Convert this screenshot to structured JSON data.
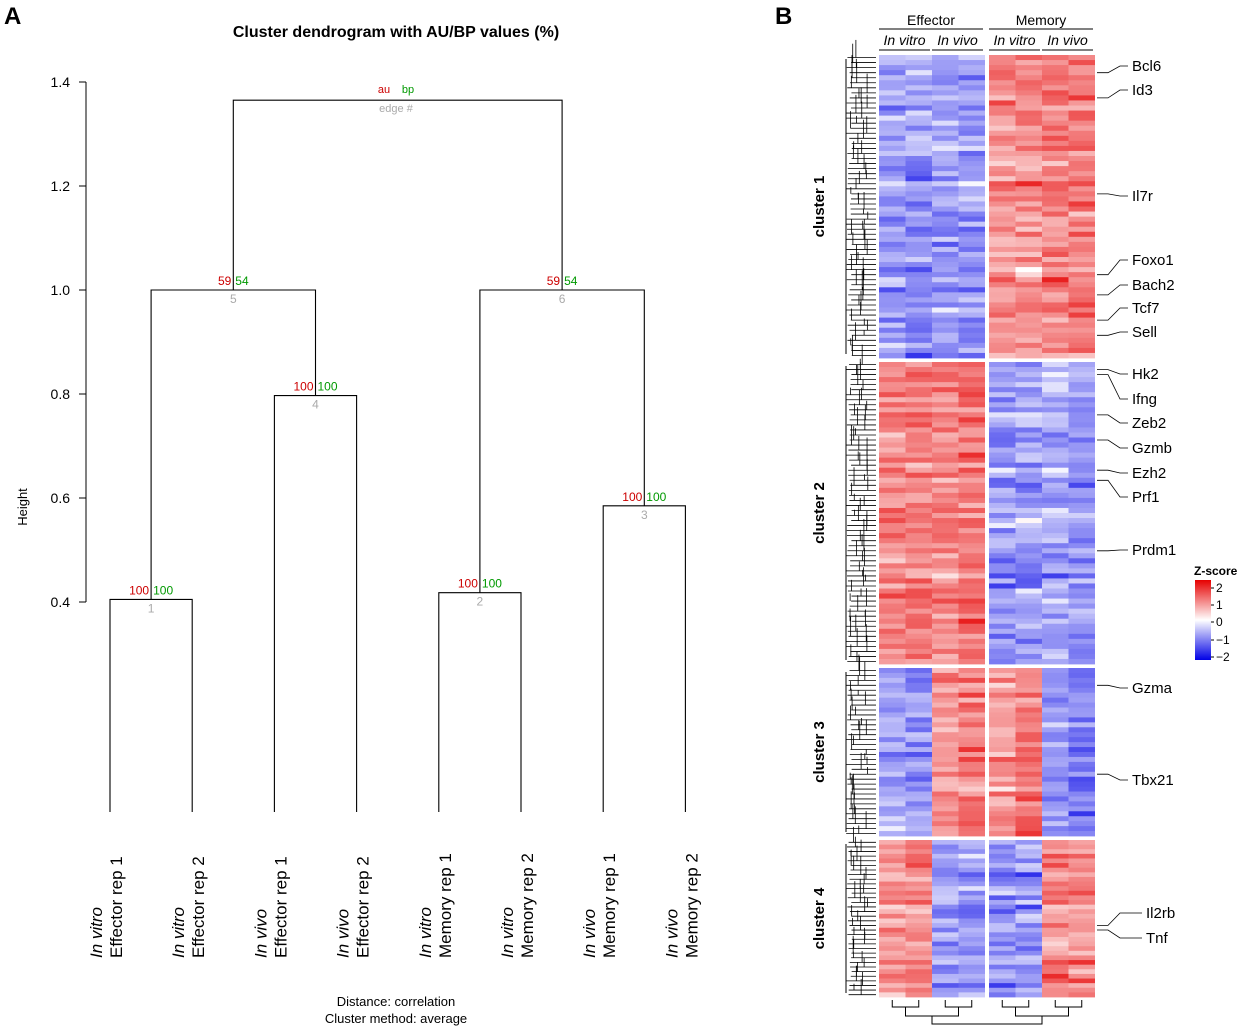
{
  "panel_a": {
    "letter": "A",
    "title": "Cluster dendrogram with AU/BP values (%)",
    "footer_line1": "Distance:  correlation",
    "footer_line2": "Cluster method:  average",
    "legend": {
      "au": "au",
      "bp": "bp",
      "edge": "edge #"
    }
  },
  "panel_b": {
    "letter": "B",
    "groups": [
      "Effector",
      "Memory"
    ],
    "conditions": [
      "In vitro",
      "In vivo",
      "In vitro",
      "In vivo"
    ],
    "clusters": [
      "cluster 1",
      "cluster 2",
      "cluster 3",
      "cluster 4"
    ],
    "colorbar_title": "Z-score",
    "colorbar_ticks": [
      "2",
      "1",
      "0",
      "−1",
      "−2"
    ],
    "colors": {
      "high": "#e60000",
      "mid": "#ffffff",
      "low": "#0000e6"
    }
  },
  "chart_data": [
    {
      "type": "dendrogram",
      "title": "Cluster dendrogram with AU/BP values (%)",
      "ylabel": "Height",
      "ylim": [
        0.4,
        1.4
      ],
      "yticks": [
        "0.4",
        "0.6",
        "0.8",
        "1.0",
        "1.2",
        "1.4"
      ],
      "ytick_values": [
        0.4,
        0.6,
        0.8,
        1.0,
        1.2,
        1.4
      ],
      "leaves": [
        {
          "condition": "In vitro",
          "sample": "Effector rep 1"
        },
        {
          "condition": "In vitro",
          "sample": "Effector rep 2"
        },
        {
          "condition": "In vivo",
          "sample": "Effector rep 1"
        },
        {
          "condition": "In vivo",
          "sample": "Effector rep 2"
        },
        {
          "condition": "In vitro",
          "sample": "Memory rep 1"
        },
        {
          "condition": "In vitro",
          "sample": "Memory rep 2"
        },
        {
          "condition": "In vivo",
          "sample": "Memory rep 1"
        },
        {
          "condition": "In vivo",
          "sample": "Memory rep 2"
        }
      ],
      "merges": [
        {
          "edge": "1",
          "left": "L0",
          "right": "L1",
          "height": 0.405,
          "au": "100",
          "bp": "100"
        },
        {
          "edge": "2",
          "left": "L4",
          "right": "L5",
          "height": 0.418,
          "au": "100",
          "bp": "100"
        },
        {
          "edge": "3",
          "left": "L6",
          "right": "L7",
          "height": 0.585,
          "au": "100",
          "bp": "100"
        },
        {
          "edge": "4",
          "left": "L2",
          "right": "L3",
          "height": 0.797,
          "au": "100",
          "bp": "100"
        },
        {
          "edge": "5",
          "left": "M1",
          "right": "M4",
          "height": 1.0,
          "au": "59",
          "bp": "54"
        },
        {
          "edge": "6",
          "left": "M2",
          "right": "M3",
          "height": 1.0,
          "au": "59",
          "bp": "54"
        },
        {
          "edge": "",
          "left": "M5",
          "right": "M6",
          "height": 1.365,
          "au": "",
          "bp": ""
        }
      ],
      "distance": "correlation",
      "cluster_method": "average"
    },
    {
      "type": "heatmap",
      "columns": [
        {
          "group": "Effector",
          "condition": "In vitro",
          "rep": "rep 1"
        },
        {
          "group": "Effector",
          "condition": "In vitro",
          "rep": "rep 2"
        },
        {
          "group": "Effector",
          "condition": "In vivo",
          "rep": "rep 1"
        },
        {
          "group": "Effector",
          "condition": "In vivo",
          "rep": "rep 2"
        },
        {
          "group": "Memory",
          "condition": "In vitro",
          "rep": "rep 1"
        },
        {
          "group": "Memory",
          "condition": "In vitro",
          "rep": "rep 2"
        },
        {
          "group": "Memory",
          "condition": "In vivo",
          "rep": "rep 1"
        },
        {
          "group": "Memory",
          "condition": "In vivo",
          "rep": "rep 2"
        }
      ],
      "row_clusters": [
        {
          "name": "cluster 1",
          "rows": 60,
          "mean_z": [
            -0.8,
            -0.8,
            -0.8,
            -0.8,
            0.9,
            0.9,
            1.0,
            1.0
          ]
        },
        {
          "name": "cluster 2",
          "rows": 60,
          "mean_z": [
            0.9,
            1.0,
            0.9,
            1.0,
            -0.8,
            -0.8,
            -0.7,
            -0.9
          ]
        },
        {
          "name": "cluster 3",
          "rows": 34,
          "mean_z": [
            -0.8,
            -0.8,
            0.9,
            1.0,
            0.8,
            1.1,
            -0.8,
            -1.0
          ]
        },
        {
          "name": "cluster 4",
          "rows": 34,
          "mean_z": [
            0.9,
            1.0,
            -0.8,
            -0.8,
            -0.8,
            -0.8,
            1.0,
            0.9
          ]
        }
      ],
      "zlim": [
        -2,
        2
      ],
      "genes": [
        {
          "name": "Bcl6",
          "cluster": "cluster 1",
          "row": 3
        },
        {
          "name": "Id3",
          "cluster": "cluster 1",
          "row": 8
        },
        {
          "name": "Il7r",
          "cluster": "cluster 1",
          "row": 27
        },
        {
          "name": "Foxo1",
          "cluster": "cluster 1",
          "row": 43
        },
        {
          "name": "Bach2",
          "cluster": "cluster 1",
          "row": 47
        },
        {
          "name": "Tcf7",
          "cluster": "cluster 1",
          "row": 52
        },
        {
          "name": "Sell",
          "cluster": "cluster 1",
          "row": 55
        },
        {
          "name": "Hk2",
          "cluster": "cluster 2",
          "row": 1
        },
        {
          "name": "Ifng",
          "cluster": "cluster 2",
          "row": 2
        },
        {
          "name": "Zeb2",
          "cluster": "cluster 2",
          "row": 10
        },
        {
          "name": "Gzmb",
          "cluster": "cluster 2",
          "row": 15
        },
        {
          "name": "Ezh2",
          "cluster": "cluster 2",
          "row": 21
        },
        {
          "name": "Prf1",
          "cluster": "cluster 2",
          "row": 23
        },
        {
          "name": "Prdm1",
          "cluster": "cluster 2",
          "row": 37
        },
        {
          "name": "Gzma",
          "cluster": "cluster 3",
          "row": 3
        },
        {
          "name": "Tbx21",
          "cluster": "cluster 3",
          "row": 21
        },
        {
          "name": "Il2rb",
          "cluster": "cluster 4",
          "row": 18
        },
        {
          "name": "Tnf",
          "cluster": "cluster 4",
          "row": 19
        }
      ]
    }
  ]
}
